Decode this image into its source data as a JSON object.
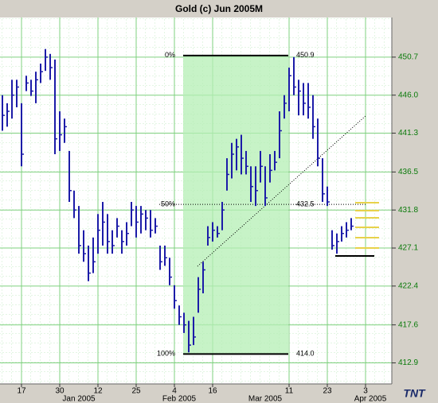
{
  "chart_data": {
    "type": "ohlc",
    "title": "Gold (c) Jun 2005M",
    "logo": "TNT",
    "categories": [
      null,
      null,
      null,
      null,
      "17",
      null,
      null,
      null,
      null,
      null,
      null,
      null,
      "30",
      null,
      null,
      null,
      null,
      null,
      null,
      null,
      "12",
      null,
      null,
      null,
      null,
      null,
      null,
      null,
      "25",
      null,
      null,
      null,
      null,
      null,
      null,
      null,
      "4",
      null,
      null,
      null,
      null,
      null,
      null,
      null,
      "16",
      null,
      null,
      null,
      null,
      null,
      null,
      null,
      null,
      null,
      null,
      null,
      null,
      null,
      null,
      null,
      "11",
      null,
      null,
      null,
      null,
      null,
      null,
      null,
      "23",
      null,
      null,
      null,
      null,
      null,
      null,
      null,
      "3",
      null,
      null,
      null,
      null,
      null
    ],
    "month_labels": [
      null,
      null,
      null,
      null,
      null,
      null,
      null,
      null,
      null,
      null,
      null,
      null,
      null,
      null,
      null,
      null,
      "Jan 2005",
      null,
      null,
      null,
      null,
      null,
      null,
      null,
      null,
      null,
      null,
      null,
      null,
      null,
      null,
      null,
      null,
      null,
      null,
      null,
      null,
      "Feb 2005",
      null,
      null,
      null,
      null,
      null,
      null,
      null,
      null,
      null,
      null,
      null,
      null,
      null,
      null,
      null,
      null,
      null,
      "Mar 2005",
      null,
      null,
      null,
      null,
      null,
      null,
      null,
      null,
      null,
      null,
      null,
      null,
      null,
      null,
      null,
      null,
      null,
      null,
      null,
      null,
      null,
      "Apr 2005",
      null,
      null,
      null,
      null
    ],
    "high": [
      446.0,
      445.0,
      447.9,
      447.9,
      445.0,
      448.4,
      447.9,
      448.9,
      449.9,
      451.7,
      451.1,
      450.4,
      444.0,
      443.1,
      439.1,
      434.2,
      432.3,
      429.3,
      427.4,
      428.4,
      431.3,
      432.8,
      431.3,
      429.3,
      430.8,
      429.3,
      430.3,
      432.8,
      432.3,
      432.3,
      431.8,
      431.8,
      430.8,
      427.4,
      427.4,
      425.9,
      422.5,
      420.0,
      419.1,
      418.1,
      418.6,
      423.5,
      425.4,
      429.8,
      430.3,
      429.8,
      432.8,
      438.2,
      440.1,
      440.6,
      441.1,
      439.1,
      437.2,
      437.2,
      439.1,
      437.2,
      438.7,
      439.1,
      444.0,
      446.0,
      449.4,
      450.7,
      447.9,
      447.5,
      447.5,
      446.0,
      443.1,
      438.2,
      434.7,
      429.3,
      428.9,
      429.8,
      430.3,
      430.8,
      null,
      null,
      null,
      null,
      null,
      null,
      null,
      null
    ],
    "low": [
      441.6,
      442.1,
      443.1,
      444.5,
      437.2,
      446.5,
      445.9,
      445.0,
      447.5,
      449.0,
      447.9,
      438.7,
      439.1,
      440.1,
      432.8,
      430.8,
      426.4,
      425.4,
      423.0,
      424.0,
      426.4,
      427.4,
      426.4,
      426.4,
      428.4,
      426.4,
      427.4,
      429.8,
      428.4,
      428.9,
      429.3,
      428.4,
      428.9,
      424.4,
      424.9,
      422.5,
      419.6,
      417.6,
      416.6,
      414.2,
      415.1,
      419.1,
      421.5,
      427.4,
      427.9,
      428.4,
      429.3,
      434.2,
      435.7,
      436.7,
      436.2,
      436.2,
      432.8,
      432.3,
      435.2,
      432.3,
      435.2,
      436.7,
      438.2,
      443.1,
      444.0,
      446.0,
      443.5,
      443.5,
      443.1,
      440.6,
      437.2,
      432.8,
      432.3,
      426.9,
      426.4,
      427.9,
      428.4,
      429.3,
      null,
      null,
      null,
      null,
      null,
      null,
      null,
      null
    ],
    "close": [
      443.5,
      444.0,
      446.0,
      447.0,
      438.7,
      447.5,
      446.5,
      447.9,
      448.9,
      450.7,
      449.4,
      440.6,
      441.1,
      442.1,
      434.2,
      431.8,
      427.4,
      426.4,
      424.0,
      425.4,
      429.3,
      430.3,
      427.9,
      427.4,
      429.8,
      427.9,
      428.9,
      431.8,
      430.3,
      431.3,
      430.8,
      429.3,
      429.8,
      425.4,
      425.9,
      423.5,
      420.6,
      418.6,
      417.6,
      415.1,
      416.1,
      422.0,
      424.4,
      428.4,
      429.3,
      428.9,
      431.8,
      436.2,
      438.7,
      439.6,
      438.2,
      437.2,
      434.7,
      434.2,
      437.2,
      433.3,
      436.7,
      437.7,
      441.6,
      445.0,
      448.4,
      447.0,
      446.5,
      445.0,
      444.5,
      442.1,
      438.2,
      433.8,
      432.8,
      427.4,
      427.9,
      428.9,
      429.3,
      429.8,
      null,
      null,
      null,
      null,
      null,
      null,
      null,
      null
    ],
    "color": "#1c1ca8",
    "ylim": [
      410.3,
      455.6
    ],
    "yticks": [
      412.9,
      417.6,
      422.4,
      427.1,
      431.8,
      436.5,
      441.3,
      {
        "value": 446,
        "label": "446.0"
      },
      450.7
    ],
    "grid": true,
    "fib_levels": [
      {
        "name": "0%",
        "value": 450.9
      },
      {
        "name": "50%",
        "value": 432.5
      },
      {
        "name": "100%",
        "value": 414.0
      }
    ],
    "fib_value_labels": [
      "450.9",
      "432.5",
      "414.0"
    ]
  }
}
